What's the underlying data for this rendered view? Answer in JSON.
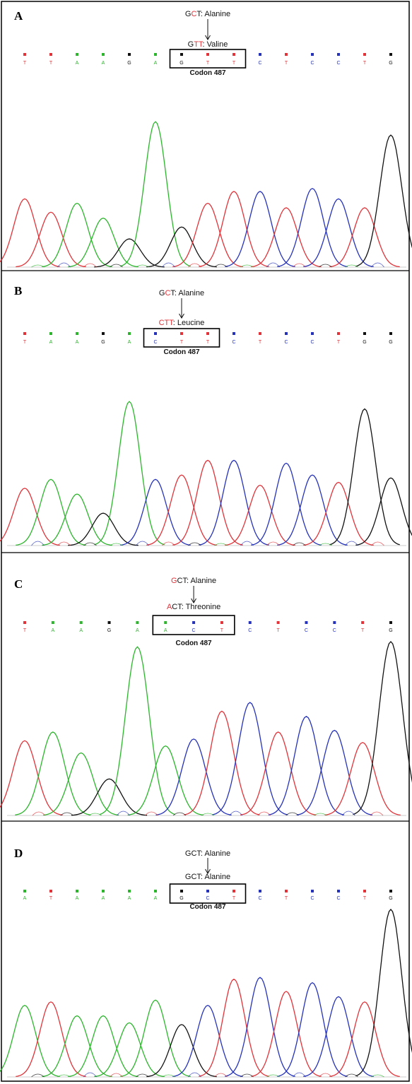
{
  "colors": {
    "A": "#2db52d",
    "C": "#2632b8",
    "G": "#111111",
    "T": "#e0343a",
    "border": "#000000"
  },
  "panels": [
    {
      "letter": "A",
      "wild_type": {
        "highlight": "C",
        "prefix": "G",
        "suffix": "T",
        "rest": ": Alanine"
      },
      "mutant": {
        "highlight": "TT",
        "prefix": "G",
        "suffix": "",
        "rest": ": Valine"
      },
      "codon_label": "Codon 487",
      "bases": [
        "T",
        "T",
        "A",
        "A",
        "G",
        "A",
        "G",
        "T",
        "T",
        "C",
        "T",
        "C",
        "C",
        "T",
        "G"
      ],
      "codon_start": 6,
      "peak_heights": [
        0.46,
        0.37,
        0.43,
        0.33,
        0.19,
        0.98,
        0.27,
        0.43,
        0.51,
        0.51,
        0.4,
        0.53,
        0.46,
        0.4,
        0.89
      ]
    },
    {
      "letter": "B",
      "wild_type": {
        "highlight": "C",
        "prefix": "G",
        "suffix": "T",
        "rest": ": Alanine"
      },
      "mutant": {
        "highlight": "CTT",
        "prefix": "",
        "suffix": "",
        "rest": ": Leucine"
      },
      "codon_label": "Codon 487",
      "bases": [
        "T",
        "A",
        "A",
        "G",
        "A",
        "C",
        "T",
        "T",
        "C",
        "T",
        "C",
        "C",
        "T",
        "G",
        "G"
      ],
      "codon_start": 5,
      "peak_heights": [
        0.39,
        0.45,
        0.35,
        0.22,
        0.98,
        0.45,
        0.48,
        0.58,
        0.58,
        0.41,
        0.56,
        0.48,
        0.43,
        0.93,
        0.46
      ]
    },
    {
      "letter": "C",
      "wild_type": {
        "highlight": "G",
        "prefix": "",
        "suffix": "CT",
        "rest": ": Alanine"
      },
      "mutant": {
        "highlight": "A",
        "prefix": "",
        "suffix": "CT",
        "rest": ": Threonine"
      },
      "codon_label": "Codon 487",
      "bases": [
        "T",
        "A",
        "A",
        "G",
        "A",
        "A",
        "C",
        "T",
        "C",
        "T",
        "C",
        "C",
        "T",
        "G"
      ],
      "codon_start": 5,
      "peak_heights": [
        0.43,
        0.48,
        0.36,
        0.21,
        0.97,
        0.4,
        0.44,
        0.6,
        0.65,
        0.48,
        0.57,
        0.49,
        0.42,
        1.0
      ]
    },
    {
      "letter": "D",
      "wild_type": {
        "highlight": "",
        "prefix": "GCT",
        "suffix": "",
        "rest": ": Alanine"
      },
      "mutant": {
        "highlight": "",
        "prefix": "GCT",
        "suffix": "",
        "rest": ": Alanine"
      },
      "codon_label": "Codon 487",
      "bases": [
        "A",
        "T",
        "A",
        "A",
        "A",
        "A",
        "G",
        "C",
        "T",
        "C",
        "T",
        "C",
        "C",
        "T",
        "G"
      ],
      "codon_start": 6,
      "peak_heights": [
        0.41,
        0.43,
        0.35,
        0.35,
        0.31,
        0.44,
        0.3,
        0.41,
        0.56,
        0.57,
        0.49,
        0.54,
        0.46,
        0.43,
        0.96
      ]
    }
  ]
}
